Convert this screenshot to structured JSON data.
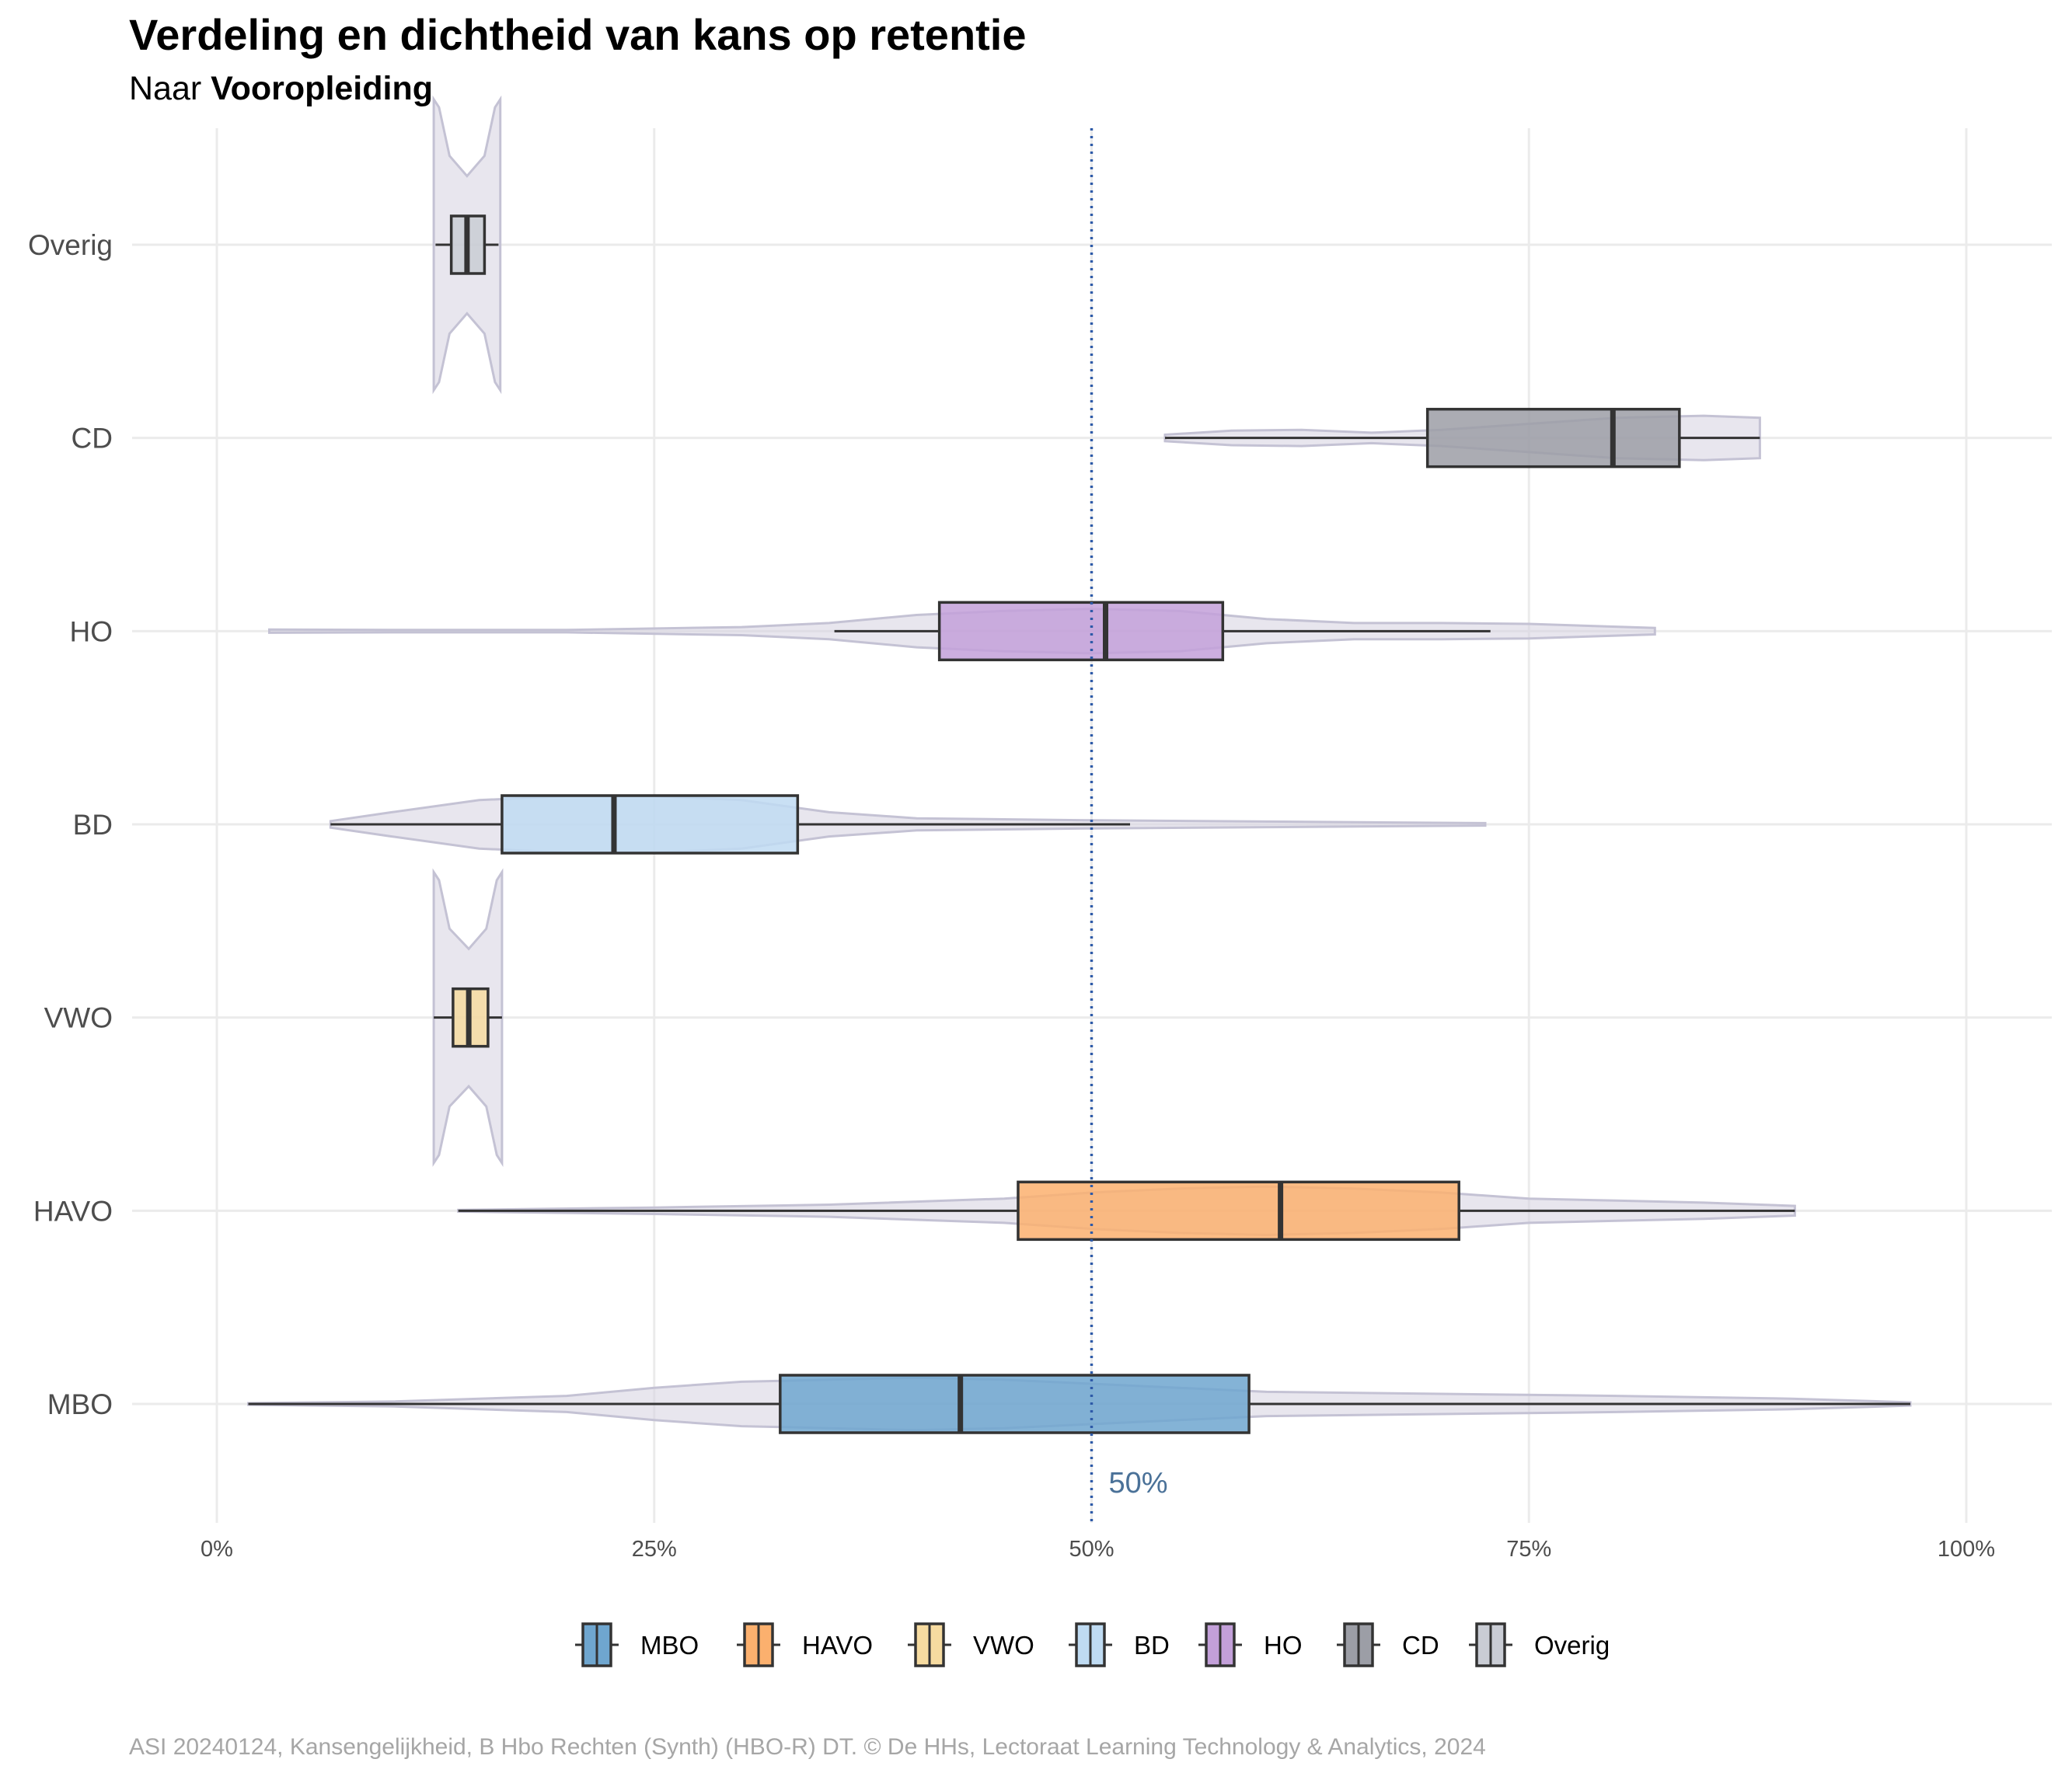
{
  "chart_data": {
    "type": "violin-boxplot",
    "orientation": "horizontal",
    "title": "Verdeling en dichtheid van kans op retentie",
    "subtitle_prefix": "Naar ",
    "subtitle_variable": "Vooropleiding",
    "xlim": [
      0,
      100
    ],
    "x_ticks": [
      "0%",
      "25%",
      "50%",
      "75%",
      "100%"
    ],
    "reference_line": {
      "value": 50,
      "label": "50%",
      "color": "#2e5aa8",
      "label_color": "#4a7198"
    },
    "grid": true,
    "legend_position": "bottom",
    "caption": "ASI 20240124, Kansengelijkheid, B Hbo Rechten (Synth) (HBO-R) DT. © De HHs, Lectoraat Learning Technology & Analytics, 2024",
    "categories": [
      "MBO",
      "HAVO",
      "VWO",
      "BD",
      "HO",
      "CD",
      "Overig"
    ],
    "series": [
      {
        "name": "MBO",
        "color": "#6fa6cf",
        "whisker_low": 1.8,
        "q1": 32.2,
        "median": 42.5,
        "q3": 59.0,
        "whisker_high": 96.8,
        "violin": [
          [
            1.8,
            0.2
          ],
          [
            10,
            0.6
          ],
          [
            20,
            2
          ],
          [
            25,
            4
          ],
          [
            30,
            5.5
          ],
          [
            35,
            6
          ],
          [
            40,
            6.5
          ],
          [
            45,
            6
          ],
          [
            50,
            5
          ],
          [
            55,
            4
          ],
          [
            60,
            3
          ],
          [
            70,
            2.5
          ],
          [
            80,
            2
          ],
          [
            90,
            1.3
          ],
          [
            96.8,
            0.4
          ]
        ]
      },
      {
        "name": "HAVO",
        "color": "#fbb06e",
        "whisker_low": 13.8,
        "q1": 45.8,
        "median": 60.8,
        "q3": 71.0,
        "whisker_high": 90.2,
        "violin": [
          [
            13.8,
            0.2
          ],
          [
            25,
            0.8
          ],
          [
            35,
            1.5
          ],
          [
            45,
            3
          ],
          [
            50,
            4.5
          ],
          [
            55,
            5.5
          ],
          [
            60,
            6
          ],
          [
            65,
            5.5
          ],
          [
            70,
            4.5
          ],
          [
            75,
            3
          ],
          [
            80,
            2.5
          ],
          [
            85,
            2
          ],
          [
            90.2,
            1.2
          ]
        ]
      },
      {
        "name": "VWO",
        "color": "#f6dba0",
        "whisker_low": 12.4,
        "q1": 13.5,
        "median": 14.4,
        "q3": 15.5,
        "whisker_high": 16.3,
        "violin": [
          [
            12.4,
            36
          ],
          [
            12.7,
            34
          ],
          [
            13.3,
            22
          ],
          [
            14.4,
            17
          ],
          [
            15.4,
            22
          ],
          [
            16.0,
            34
          ],
          [
            16.3,
            36
          ]
        ]
      },
      {
        "name": "BD",
        "color": "#bfdbf2",
        "whisker_low": 6.5,
        "q1": 16.3,
        "median": 22.7,
        "q3": 33.2,
        "whisker_high": 52.2,
        "violin": [
          [
            6.5,
            0.8
          ],
          [
            10,
            3
          ],
          [
            15,
            6
          ],
          [
            20,
            7
          ],
          [
            25,
            7
          ],
          [
            30,
            6
          ],
          [
            35,
            3
          ],
          [
            40,
            1.5
          ],
          [
            50,
            1
          ],
          [
            60,
            0.7
          ],
          [
            72.5,
            0.3
          ]
        ]
      },
      {
        "name": "HO",
        "color": "#c3a0d9",
        "whisker_low": 35.3,
        "q1": 41.3,
        "median": 50.8,
        "q3": 57.5,
        "whisker_high": 72.8,
        "violin": [
          [
            3,
            0.4
          ],
          [
            10,
            0.3
          ],
          [
            20,
            0.3
          ],
          [
            30,
            1
          ],
          [
            35,
            2
          ],
          [
            40,
            4
          ],
          [
            45,
            5
          ],
          [
            50,
            5.5
          ],
          [
            55,
            5
          ],
          [
            60,
            3
          ],
          [
            65,
            2
          ],
          [
            70,
            2
          ],
          [
            75,
            1.8
          ],
          [
            82.2,
            0.8
          ]
        ]
      },
      {
        "name": "CD",
        "color": "#9c9ea6",
        "whisker_low": 54.2,
        "q1": 69.2,
        "median": 79.8,
        "q3": 83.6,
        "whisker_high": 88.2,
        "violin": [
          [
            54.2,
            0.8
          ],
          [
            58,
            1.8
          ],
          [
            62,
            2
          ],
          [
            66,
            1.3
          ],
          [
            70,
            2
          ],
          [
            75,
            3.5
          ],
          [
            80,
            5
          ],
          [
            85,
            5.5
          ],
          [
            88.2,
            5
          ]
        ]
      },
      {
        "name": "Overig",
        "color": "#c9ccd4",
        "whisker_low": 12.5,
        "q1": 13.4,
        "median": 14.3,
        "q3": 15.3,
        "whisker_high": 16.1,
        "violin": [
          [
            12.4,
            36
          ],
          [
            12.7,
            34
          ],
          [
            13.3,
            22
          ],
          [
            14.3,
            17
          ],
          [
            15.3,
            22
          ],
          [
            15.9,
            34
          ],
          [
            16.2,
            36
          ]
        ]
      }
    ]
  }
}
